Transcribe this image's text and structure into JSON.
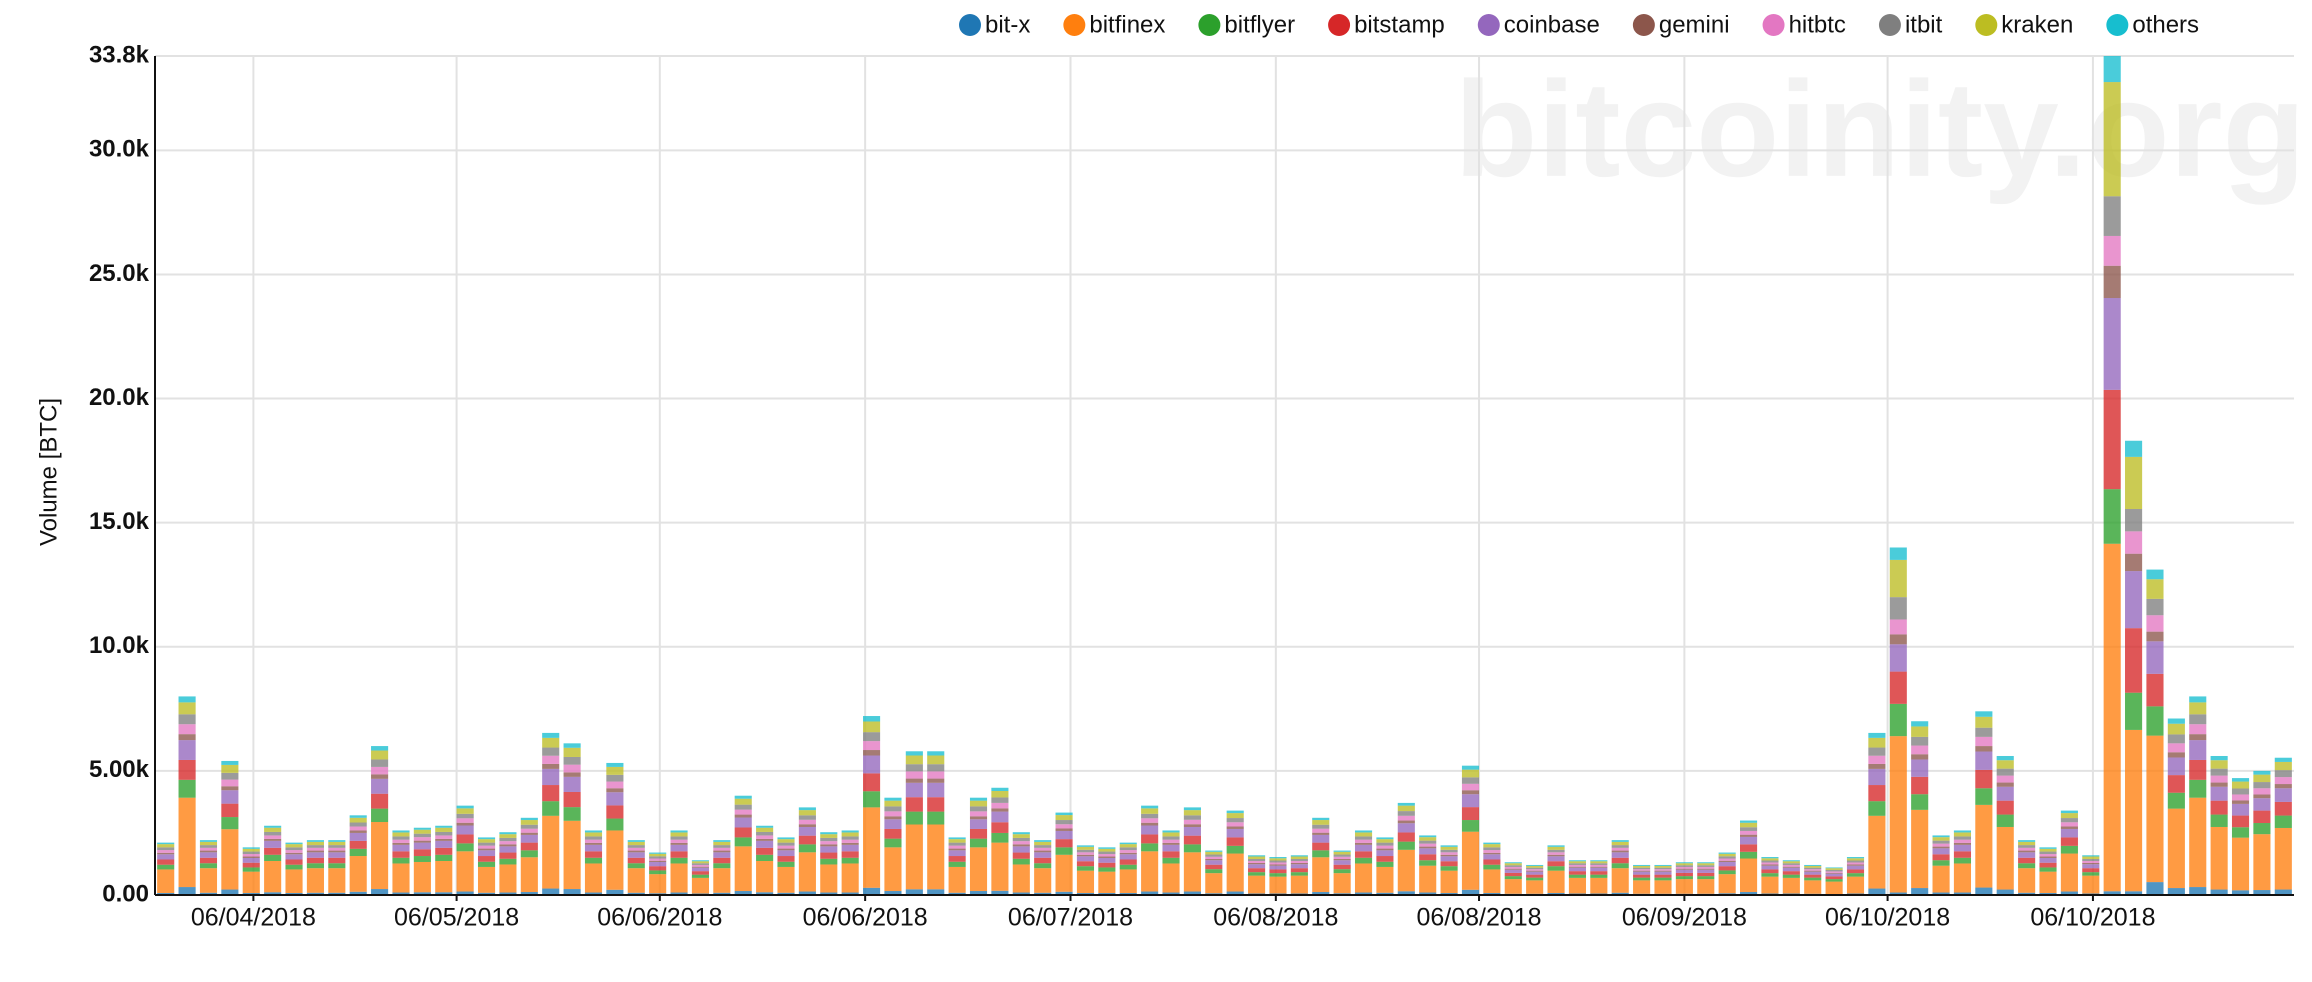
{
  "chart_data": {
    "type": "stacked-bar",
    "watermark": "bitcoinity.org",
    "y_label": "Volume [BTC]",
    "categories": [
      null,
      null,
      null,
      null,
      null,
      null,
      null,
      null,
      null,
      null,
      null,
      null,
      null,
      null,
      null,
      null,
      null,
      null,
      null,
      null,
      null,
      null,
      null,
      null,
      null,
      null,
      null,
      null,
      null,
      null,
      null,
      null,
      null,
      null,
      null,
      null,
      null,
      null,
      null,
      null,
      null,
      null,
      null,
      null,
      null,
      null,
      null,
      null,
      null,
      null,
      null,
      null,
      null,
      null,
      null,
      null,
      null,
      null,
      null,
      null,
      null,
      null,
      null,
      null,
      null,
      null,
      null,
      null,
      null,
      null,
      null,
      null,
      null,
      null,
      null,
      null,
      null,
      null,
      null,
      null,
      null,
      null,
      null,
      null,
      null,
      null,
      null,
      null,
      null,
      null,
      null,
      null,
      null,
      null,
      null,
      null,
      null,
      null,
      null,
      null
    ],
    "xlim": [
      0,
      100
    ],
    "xticks": [
      {
        "value": 4.6,
        "label": "06/04/2018"
      },
      {
        "value": 14.1,
        "label": "06/05/2018"
      },
      {
        "value": 23.6,
        "label": "06/06/2018"
      },
      {
        "value": 33.2,
        "label": "06/06/2018"
      },
      {
        "value": 42.8,
        "label": "06/07/2018"
      },
      {
        "value": 52.4,
        "label": "06/08/2018"
      },
      {
        "value": 61.9,
        "label": "06/08/2018"
      },
      {
        "value": 71.5,
        "label": "06/09/2018"
      },
      {
        "value": 81.0,
        "label": "06/10/2018"
      },
      {
        "value": 90.6,
        "label": "06/10/2018"
      }
    ],
    "ylim": [
      0,
      33800
    ],
    "yticks": [
      {
        "value": 0,
        "label": "0.00"
      },
      {
        "value": 5000,
        "label": "5.00k"
      },
      {
        "value": 10000,
        "label": "10.0k"
      },
      {
        "value": 15000,
        "label": "15.0k"
      },
      {
        "value": 20000,
        "label": "20.0k"
      },
      {
        "value": 25000,
        "label": "25.0k"
      },
      {
        "value": 30000,
        "label": "30.0k"
      },
      {
        "value": 33800,
        "label": "33.8k"
      }
    ],
    "grid": true,
    "legend": "top",
    "series": [
      {
        "name": "bit-x",
        "color": "#1f77b4",
        "values": [
          80,
          320,
          90,
          220,
          80,
          110,
          80,
          90,
          90,
          130,
          240,
          100,
          110,
          110,
          140,
          90,
          100,
          120,
          260,
          240,
          100,
          210,
          90,
          70,
          100,
          60,
          90,
          160,
          110,
          90,
          140,
          100,
          100,
          290,
          160,
          230,
          230,
          90,
          160,
          170,
          100,
          90,
          130,
          80,
          80,
          80,
          140,
          100,
          140,
          70,
          140,
          60,
          60,
          60,
          120,
          70,
          100,
          90,
          150,
          100,
          80,
          210,
          80,
          50,
          50,
          80,
          60,
          60,
          90,
          50,
          50,
          50,
          50,
          70,
          120,
          60,
          60,
          50,
          40,
          60,
          260,
          100,
          280,
          100,
          100,
          300,
          220,
          90,
          80,
          140,
          60,
          150,
          150,
          520,
          280,
          320,
          220,
          190,
          200,
          220
        ]
      },
      {
        "name": "bitfinex",
        "color": "#ff7f0e",
        "values": [
          950,
          3600,
          990,
          2430,
          860,
          1260,
          950,
          990,
          990,
          1440,
          2700,
          1170,
          1220,
          1260,
          1620,
          1040,
          1130,
          1400,
          2930,
          2750,
          1170,
          2390,
          990,
          770,
          1170,
          630,
          990,
          1800,
          1260,
          1040,
          1580,
          1130,
          1170,
          3240,
          1760,
          2610,
          2610,
          1040,
          1760,
          1940,
          1130,
          990,
          1490,
          900,
          860,
          950,
          1620,
          1170,
          1580,
          810,
          1530,
          720,
          680,
          720,
          1400,
          810,
          1170,
          1040,
          1670,
          1080,
          900,
          2340,
          950,
          590,
          540,
          900,
          630,
          630,
          990,
          540,
          540,
          590,
          590,
          770,
          1350,
          680,
          630,
          540,
          500,
          680,
          2930,
          6300,
          3150,
          1080,
          1170,
          3330,
          2520,
          990,
          860,
          1530,
          720,
          14000,
          6500,
          5900,
          3200,
          3600,
          2520,
          2120,
          2250,
          2480
        ]
      },
      {
        "name": "bitflyer",
        "color": "#2ca02c",
        "values": [
          190,
          720,
          200,
          490,
          170,
          250,
          190,
          200,
          200,
          290,
          540,
          230,
          240,
          250,
          320,
          210,
          230,
          280,
          590,
          550,
          230,
          480,
          200,
          150,
          230,
          130,
          200,
          360,
          250,
          210,
          320,
          230,
          230,
          650,
          350,
          520,
          520,
          210,
          350,
          390,
          230,
          200,
          300,
          180,
          170,
          190,
          320,
          230,
          320,
          160,
          310,
          140,
          140,
          140,
          280,
          160,
          230,
          210,
          330,
          220,
          180,
          470,
          190,
          120,
          110,
          180,
          130,
          130,
          200,
          110,
          110,
          120,
          120,
          150,
          270,
          140,
          130,
          110,
          100,
          140,
          590,
          1300,
          630,
          220,
          230,
          670,
          500,
          200,
          170,
          310,
          140,
          2200,
          1500,
          1180,
          640,
          720,
          500,
          420,
          450,
          500
        ]
      },
      {
        "name": "bitstamp",
        "color": "#d62728",
        "values": [
          210,
          800,
          220,
          540,
          190,
          280,
          210,
          220,
          220,
          320,
          600,
          260,
          270,
          280,
          360,
          230,
          250,
          310,
          650,
          610,
          260,
          530,
          220,
          170,
          260,
          140,
          220,
          400,
          280,
          230,
          350,
          250,
          260,
          720,
          390,
          580,
          580,
          230,
          390,
          430,
          250,
          220,
          330,
          200,
          190,
          210,
          360,
          260,
          350,
          180,
          340,
          160,
          150,
          160,
          310,
          180,
          260,
          230,
          370,
          240,
          200,
          520,
          210,
          130,
          120,
          200,
          140,
          140,
          220,
          120,
          120,
          130,
          130,
          170,
          300,
          150,
          140,
          120,
          110,
          150,
          650,
          1300,
          700,
          240,
          260,
          740,
          560,
          220,
          190,
          340,
          160,
          4000,
          2600,
          1310,
          710,
          800,
          560,
          470,
          500,
          550
        ]
      },
      {
        "name": "coinbase",
        "color": "#9467bd",
        "values": [
          210,
          800,
          220,
          540,
          190,
          280,
          210,
          220,
          220,
          320,
          600,
          260,
          270,
          280,
          360,
          230,
          250,
          310,
          650,
          610,
          260,
          530,
          220,
          170,
          260,
          140,
          220,
          400,
          280,
          230,
          350,
          250,
          260,
          720,
          390,
          580,
          580,
          230,
          390,
          430,
          250,
          220,
          330,
          200,
          190,
          210,
          360,
          260,
          350,
          180,
          340,
          160,
          150,
          160,
          310,
          180,
          260,
          230,
          370,
          240,
          200,
          520,
          210,
          130,
          120,
          200,
          140,
          140,
          220,
          120,
          120,
          130,
          130,
          170,
          300,
          150,
          140,
          120,
          110,
          150,
          650,
          1100,
          700,
          240,
          260,
          740,
          560,
          220,
          190,
          340,
          160,
          3700,
          2300,
          1310,
          710,
          800,
          560,
          470,
          500,
          550
        ]
      },
      {
        "name": "gemini",
        "color": "#8c564b",
        "values": [
          60,
          240,
          70,
          160,
          60,
          80,
          60,
          70,
          70,
          100,
          180,
          80,
          80,
          80,
          110,
          70,
          80,
          90,
          200,
          180,
          80,
          160,
          70,
          50,
          80,
          40,
          70,
          120,
          80,
          70,
          110,
          80,
          80,
          220,
          120,
          170,
          170,
          70,
          120,
          130,
          80,
          70,
          100,
          60,
          60,
          60,
          110,
          80,
          110,
          50,
          100,
          50,
          50,
          50,
          90,
          50,
          80,
          70,
          110,
          70,
          60,
          160,
          60,
          40,
          40,
          60,
          40,
          40,
          70,
          40,
          40,
          40,
          40,
          50,
          90,
          50,
          40,
          40,
          30,
          50,
          200,
          400,
          210,
          70,
          80,
          220,
          170,
          70,
          60,
          100,
          50,
          1300,
          700,
          390,
          210,
          240,
          170,
          140,
          150,
          170
        ]
      },
      {
        "name": "hitbtc",
        "color": "#e377c2",
        "values": [
          110,
          400,
          110,
          270,
          100,
          140,
          110,
          110,
          110,
          160,
          300,
          130,
          140,
          140,
          180,
          120,
          130,
          160,
          330,
          310,
          130,
          270,
          110,
          90,
          130,
          70,
          110,
          200,
          140,
          120,
          180,
          130,
          130,
          360,
          200,
          290,
          290,
          120,
          200,
          220,
          130,
          110,
          170,
          100,
          100,
          110,
          180,
          130,
          180,
          90,
          170,
          80,
          80,
          80,
          160,
          90,
          130,
          120,
          190,
          120,
          100,
          260,
          110,
          70,
          60,
          100,
          70,
          70,
          110,
          60,
          60,
          70,
          70,
          90,
          150,
          80,
          70,
          60,
          60,
          80,
          330,
          600,
          350,
          120,
          130,
          370,
          280,
          110,
          100,
          170,
          80,
          1200,
          900,
          660,
          360,
          400,
          280,
          240,
          250,
          280
        ]
      },
      {
        "name": "itbit",
        "color": "#7f7f7f",
        "values": [
          110,
          400,
          110,
          270,
          100,
          140,
          110,
          110,
          110,
          160,
          300,
          130,
          140,
          140,
          180,
          120,
          130,
          160,
          330,
          310,
          130,
          270,
          110,
          90,
          130,
          70,
          110,
          200,
          140,
          120,
          180,
          130,
          130,
          360,
          200,
          290,
          290,
          120,
          200,
          220,
          130,
          110,
          170,
          100,
          100,
          110,
          180,
          130,
          180,
          90,
          170,
          80,
          80,
          80,
          160,
          90,
          130,
          120,
          190,
          120,
          100,
          260,
          110,
          70,
          60,
          100,
          70,
          70,
          110,
          60,
          60,
          70,
          70,
          90,
          150,
          80,
          70,
          60,
          60,
          80,
          330,
          900,
          350,
          120,
          130,
          370,
          280,
          110,
          100,
          170,
          80,
          1600,
          900,
          660,
          360,
          400,
          280,
          240,
          250,
          280
        ]
      },
      {
        "name": "kraken",
        "color": "#bcbd22",
        "values": [
          130,
          480,
          130,
          320,
          110,
          170,
          130,
          130,
          130,
          190,
          360,
          160,
          160,
          170,
          220,
          140,
          150,
          190,
          390,
          370,
          160,
          320,
          130,
          100,
          160,
          80,
          130,
          240,
          170,
          140,
          210,
          150,
          160,
          430,
          230,
          350,
          350,
          140,
          230,
          260,
          150,
          130,
          200,
          120,
          110,
          130,
          220,
          160,
          210,
          110,
          200,
          100,
          90,
          100,
          190,
          110,
          160,
          140,
          220,
          140,
          120,
          310,
          130,
          80,
          70,
          120,
          80,
          80,
          130,
          70,
          70,
          80,
          80,
          100,
          180,
          90,
          80,
          70,
          70,
          90,
          390,
          1500,
          420,
          140,
          160,
          440,
          340,
          130,
          110,
          200,
          100,
          4600,
          2100,
          790,
          430,
          480,
          340,
          280,
          300,
          330
        ]
      },
      {
        "name": "others",
        "color": "#17becf",
        "values": [
          60,
          240,
          70,
          160,
          60,
          80,
          60,
          70,
          70,
          100,
          180,
          80,
          80,
          80,
          110,
          70,
          80,
          90,
          200,
          180,
          80,
          160,
          70,
          50,
          80,
          40,
          70,
          120,
          80,
          70,
          110,
          80,
          80,
          220,
          120,
          170,
          170,
          70,
          120,
          130,
          80,
          70,
          100,
          60,
          60,
          60,
          110,
          80,
          110,
          50,
          100,
          50,
          50,
          50,
          90,
          50,
          80,
          70,
          110,
          70,
          60,
          160,
          60,
          40,
          40,
          60,
          40,
          40,
          70,
          40,
          40,
          40,
          40,
          50,
          90,
          50,
          40,
          40,
          30,
          50,
          200,
          500,
          210,
          70,
          80,
          220,
          170,
          70,
          60,
          100,
          50,
          1050,
          650,
          390,
          210,
          240,
          170,
          140,
          150,
          170
        ]
      }
    ]
  }
}
